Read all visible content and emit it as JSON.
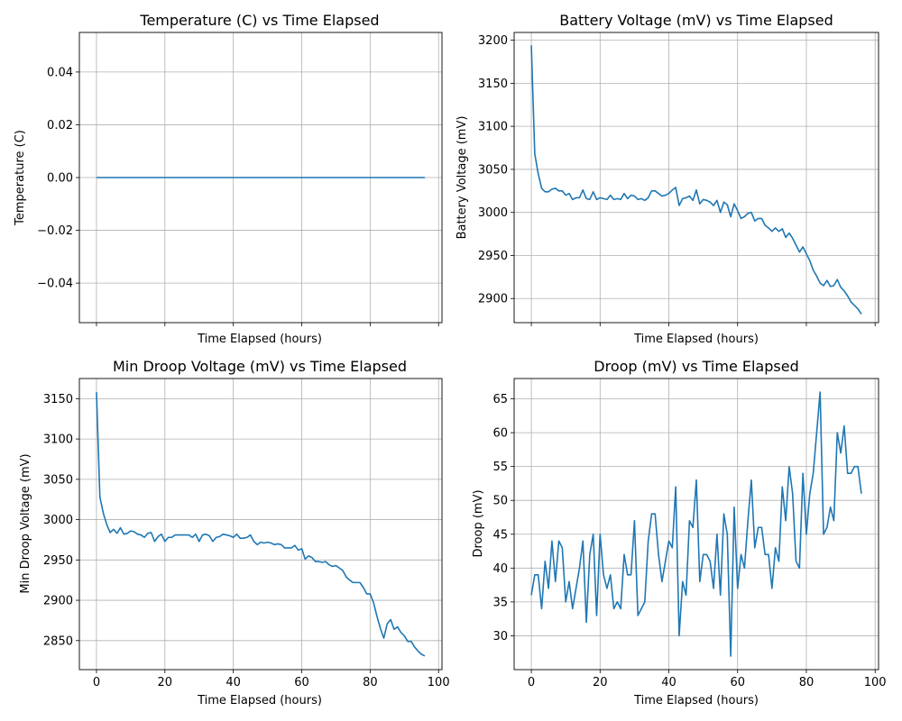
{
  "chart_data": [
    {
      "type": "line",
      "title": "Temperature (C) vs Time Elapsed",
      "xlabel": "Time Elapsed (hours)",
      "ylabel": "Temperature (C)",
      "xlim": [
        -5,
        101
      ],
      "ylim": [
        -0.055,
        0.055
      ],
      "xticks": [
        0,
        20,
        40,
        60,
        80,
        100
      ],
      "show_xticklabels": false,
      "yticks": [
        -0.04,
        -0.02,
        0.0,
        0.02,
        0.04
      ],
      "ytick_labels": [
        "−0.04",
        "−0.02",
        "0.00",
        "0.02",
        "0.04"
      ],
      "grid": true,
      "color": "#1f77b4",
      "series": [
        {
          "x": [
            0,
            96
          ],
          "y": [
            0,
            0
          ]
        }
      ]
    },
    {
      "type": "line",
      "title": "Battery Voltage (mV) vs Time Elapsed",
      "xlabel": "Time Elapsed (hours)",
      "ylabel": "Battery Voltage (mV)",
      "xlim": [
        -5,
        101
      ],
      "ylim": [
        2872,
        3209
      ],
      "xticks": [
        0,
        20,
        40,
        60,
        80,
        100
      ],
      "show_xticklabels": false,
      "yticks": [
        2900,
        2950,
        3000,
        3050,
        3100,
        3150,
        3200
      ],
      "ytick_labels": [
        "2900",
        "2950",
        "3000",
        "3050",
        "3100",
        "3150",
        "3200"
      ],
      "grid": true,
      "color": "#1f77b4",
      "series": [
        {
          "x": [
            0,
            1,
            2,
            3,
            4,
            5,
            6,
            7,
            8,
            9,
            10,
            11,
            12,
            13,
            14,
            15,
            16,
            17,
            18,
            19,
            20,
            21,
            22,
            23,
            24,
            25,
            26,
            27,
            28,
            29,
            30,
            31,
            32,
            33,
            34,
            35,
            36,
            37,
            38,
            39,
            40,
            41,
            42,
            43,
            44,
            45,
            46,
            47,
            48,
            49,
            50,
            51,
            52,
            53,
            54,
            55,
            56,
            57,
            58,
            59,
            60,
            61,
            62,
            63,
            64,
            65,
            66,
            67,
            68,
            69,
            70,
            71,
            72,
            73,
            74,
            75,
            76,
            77,
            78,
            79,
            80,
            81,
            82,
            83,
            84,
            85,
            86,
            87,
            88,
            89,
            90,
            91,
            92,
            93,
            94,
            95,
            96
          ],
          "y": [
            3194,
            3068,
            3045,
            3028,
            3024,
            3024,
            3027,
            3028,
            3025,
            3025,
            3020,
            3022,
            3015,
            3017,
            3017,
            3026,
            3016,
            3015,
            3024,
            3015,
            3017,
            3016,
            3015,
            3020,
            3015,
            3016,
            3015,
            3022,
            3016,
            3020,
            3019,
            3015,
            3016,
            3014,
            3017,
            3025,
            3025,
            3022,
            3019,
            3020,
            3022,
            3026,
            3029,
            3008,
            3016,
            3017,
            3019,
            3014,
            3026,
            3010,
            3015,
            3014,
            3012,
            3008,
            3014,
            3000,
            3012,
            3009,
            2995,
            3010,
            3002,
            2993,
            2995,
            2999,
            3000,
            2990,
            2993,
            2993,
            2985,
            2982,
            2978,
            2982,
            2978,
            2981,
            2971,
            2976,
            2970,
            2962,
            2954,
            2960,
            2952,
            2944,
            2933,
            2926,
            2918,
            2915,
            2921,
            2914,
            2915,
            2922,
            2913,
            2909,
            2903,
            2896,
            2892,
            2888,
            2882
          ]
        }
      ]
    },
    {
      "type": "line",
      "title": "Min Droop Voltage (mV) vs Time Elapsed",
      "xlabel": "Time Elapsed (hours)",
      "ylabel": "Min Droop Voltage (mV)",
      "xlim": [
        -5,
        101
      ],
      "ylim": [
        2814,
        3175
      ],
      "xticks": [
        0,
        20,
        40,
        60,
        80,
        100
      ],
      "show_xticklabels": true,
      "yticks": [
        2850,
        2900,
        2950,
        3000,
        3050,
        3100,
        3150
      ],
      "ytick_labels": [
        "2850",
        "2900",
        "2950",
        "3000",
        "3050",
        "3100",
        "3150"
      ],
      "grid": true,
      "color": "#1f77b4",
      "series": [
        {
          "x": [
            0,
            1,
            2,
            3,
            4,
            5,
            6,
            7,
            8,
            9,
            10,
            11,
            12,
            13,
            14,
            15,
            16,
            17,
            18,
            19,
            20,
            21,
            22,
            23,
            24,
            25,
            26,
            27,
            28,
            29,
            30,
            31,
            32,
            33,
            34,
            35,
            36,
            37,
            38,
            39,
            40,
            41,
            42,
            43,
            44,
            45,
            46,
            47,
            48,
            49,
            50,
            51,
            52,
            53,
            54,
            55,
            56,
            57,
            58,
            59,
            60,
            61,
            62,
            63,
            64,
            65,
            66,
            67,
            68,
            69,
            70,
            71,
            72,
            73,
            74,
            75,
            76,
            77,
            78,
            79,
            80,
            81,
            82,
            83,
            84,
            85,
            86,
            87,
            88,
            89,
            90,
            91,
            92,
            93,
            94,
            95,
            96
          ],
          "y": [
            3158,
            3028,
            3008,
            2994,
            2984,
            2988,
            2983,
            2990,
            2982,
            2983,
            2986,
            2985,
            2982,
            2981,
            2978,
            2983,
            2984,
            2973,
            2979,
            2982,
            2973,
            2978,
            2978,
            2981,
            2981,
            2981,
            2981,
            2981,
            2978,
            2982,
            2973,
            2981,
            2982,
            2980,
            2973,
            2978,
            2979,
            2982,
            2981,
            2980,
            2978,
            2982,
            2977,
            2977,
            2978,
            2981,
            2973,
            2969,
            2972,
            2971,
            2972,
            2971,
            2969,
            2970,
            2969,
            2965,
            2965,
            2965,
            2968,
            2962,
            2964,
            2951,
            2955,
            2953,
            2948,
            2948,
            2947,
            2948,
            2944,
            2942,
            2943,
            2940,
            2937,
            2929,
            2925,
            2922,
            2922,
            2922,
            2916,
            2908,
            2908,
            2897,
            2880,
            2865,
            2853,
            2871,
            2876,
            2864,
            2867,
            2860,
            2856,
            2849,
            2849,
            2842,
            2837,
            2833,
            2831
          ]
        }
      ]
    },
    {
      "type": "line",
      "title": "Droop (mV) vs Time Elapsed",
      "xlabel": "Time Elapsed (hours)",
      "ylabel": "Droop (mV)",
      "xlim": [
        -5,
        101
      ],
      "ylim": [
        25,
        68
      ],
      "xticks": [
        0,
        20,
        40,
        60,
        80,
        100
      ],
      "show_xticklabels": true,
      "yticks": [
        30,
        35,
        40,
        45,
        50,
        55,
        60,
        65
      ],
      "ytick_labels": [
        "30",
        "35",
        "40",
        "45",
        "50",
        "55",
        "60",
        "65"
      ],
      "grid": true,
      "color": "#1f77b4",
      "series": [
        {
          "x": [
            0,
            1,
            2,
            3,
            4,
            5,
            6,
            7,
            8,
            9,
            10,
            11,
            12,
            13,
            14,
            15,
            16,
            17,
            18,
            19,
            20,
            21,
            22,
            23,
            24,
            25,
            26,
            27,
            28,
            29,
            30,
            31,
            32,
            33,
            34,
            35,
            36,
            37,
            38,
            39,
            40,
            41,
            42,
            43,
            44,
            45,
            46,
            47,
            48,
            49,
            50,
            51,
            52,
            53,
            54,
            55,
            56,
            57,
            58,
            59,
            60,
            61,
            62,
            63,
            64,
            65,
            66,
            67,
            68,
            69,
            70,
            71,
            72,
            73,
            74,
            75,
            76,
            77,
            78,
            79,
            80,
            81,
            82,
            83,
            84,
            85,
            86,
            87,
            88,
            89,
            90,
            91,
            92,
            93,
            94,
            95,
            96
          ],
          "y": [
            36,
            39,
            39,
            34,
            41,
            37,
            44,
            38,
            44,
            43,
            35,
            38,
            34,
            37,
            40,
            44,
            32,
            42,
            45,
            33,
            45,
            39,
            37,
            39,
            34,
            35,
            34,
            42,
            39,
            39,
            47,
            33,
            34,
            35,
            44,
            48,
            48,
            42,
            38,
            41,
            44,
            43,
            52,
            30,
            38,
            36,
            47,
            46,
            53,
            38,
            42,
            42,
            41,
            37,
            45,
            36,
            48,
            45,
            27,
            49,
            37,
            42,
            40,
            47,
            53,
            43,
            46,
            46,
            42,
            42,
            37,
            43,
            41,
            52,
            47,
            55,
            51,
            41,
            40,
            54,
            45,
            51,
            54,
            60,
            66,
            45,
            46,
            49,
            47,
            60,
            57,
            61,
            54,
            54,
            55,
            55,
            51
          ]
        }
      ]
    }
  ]
}
